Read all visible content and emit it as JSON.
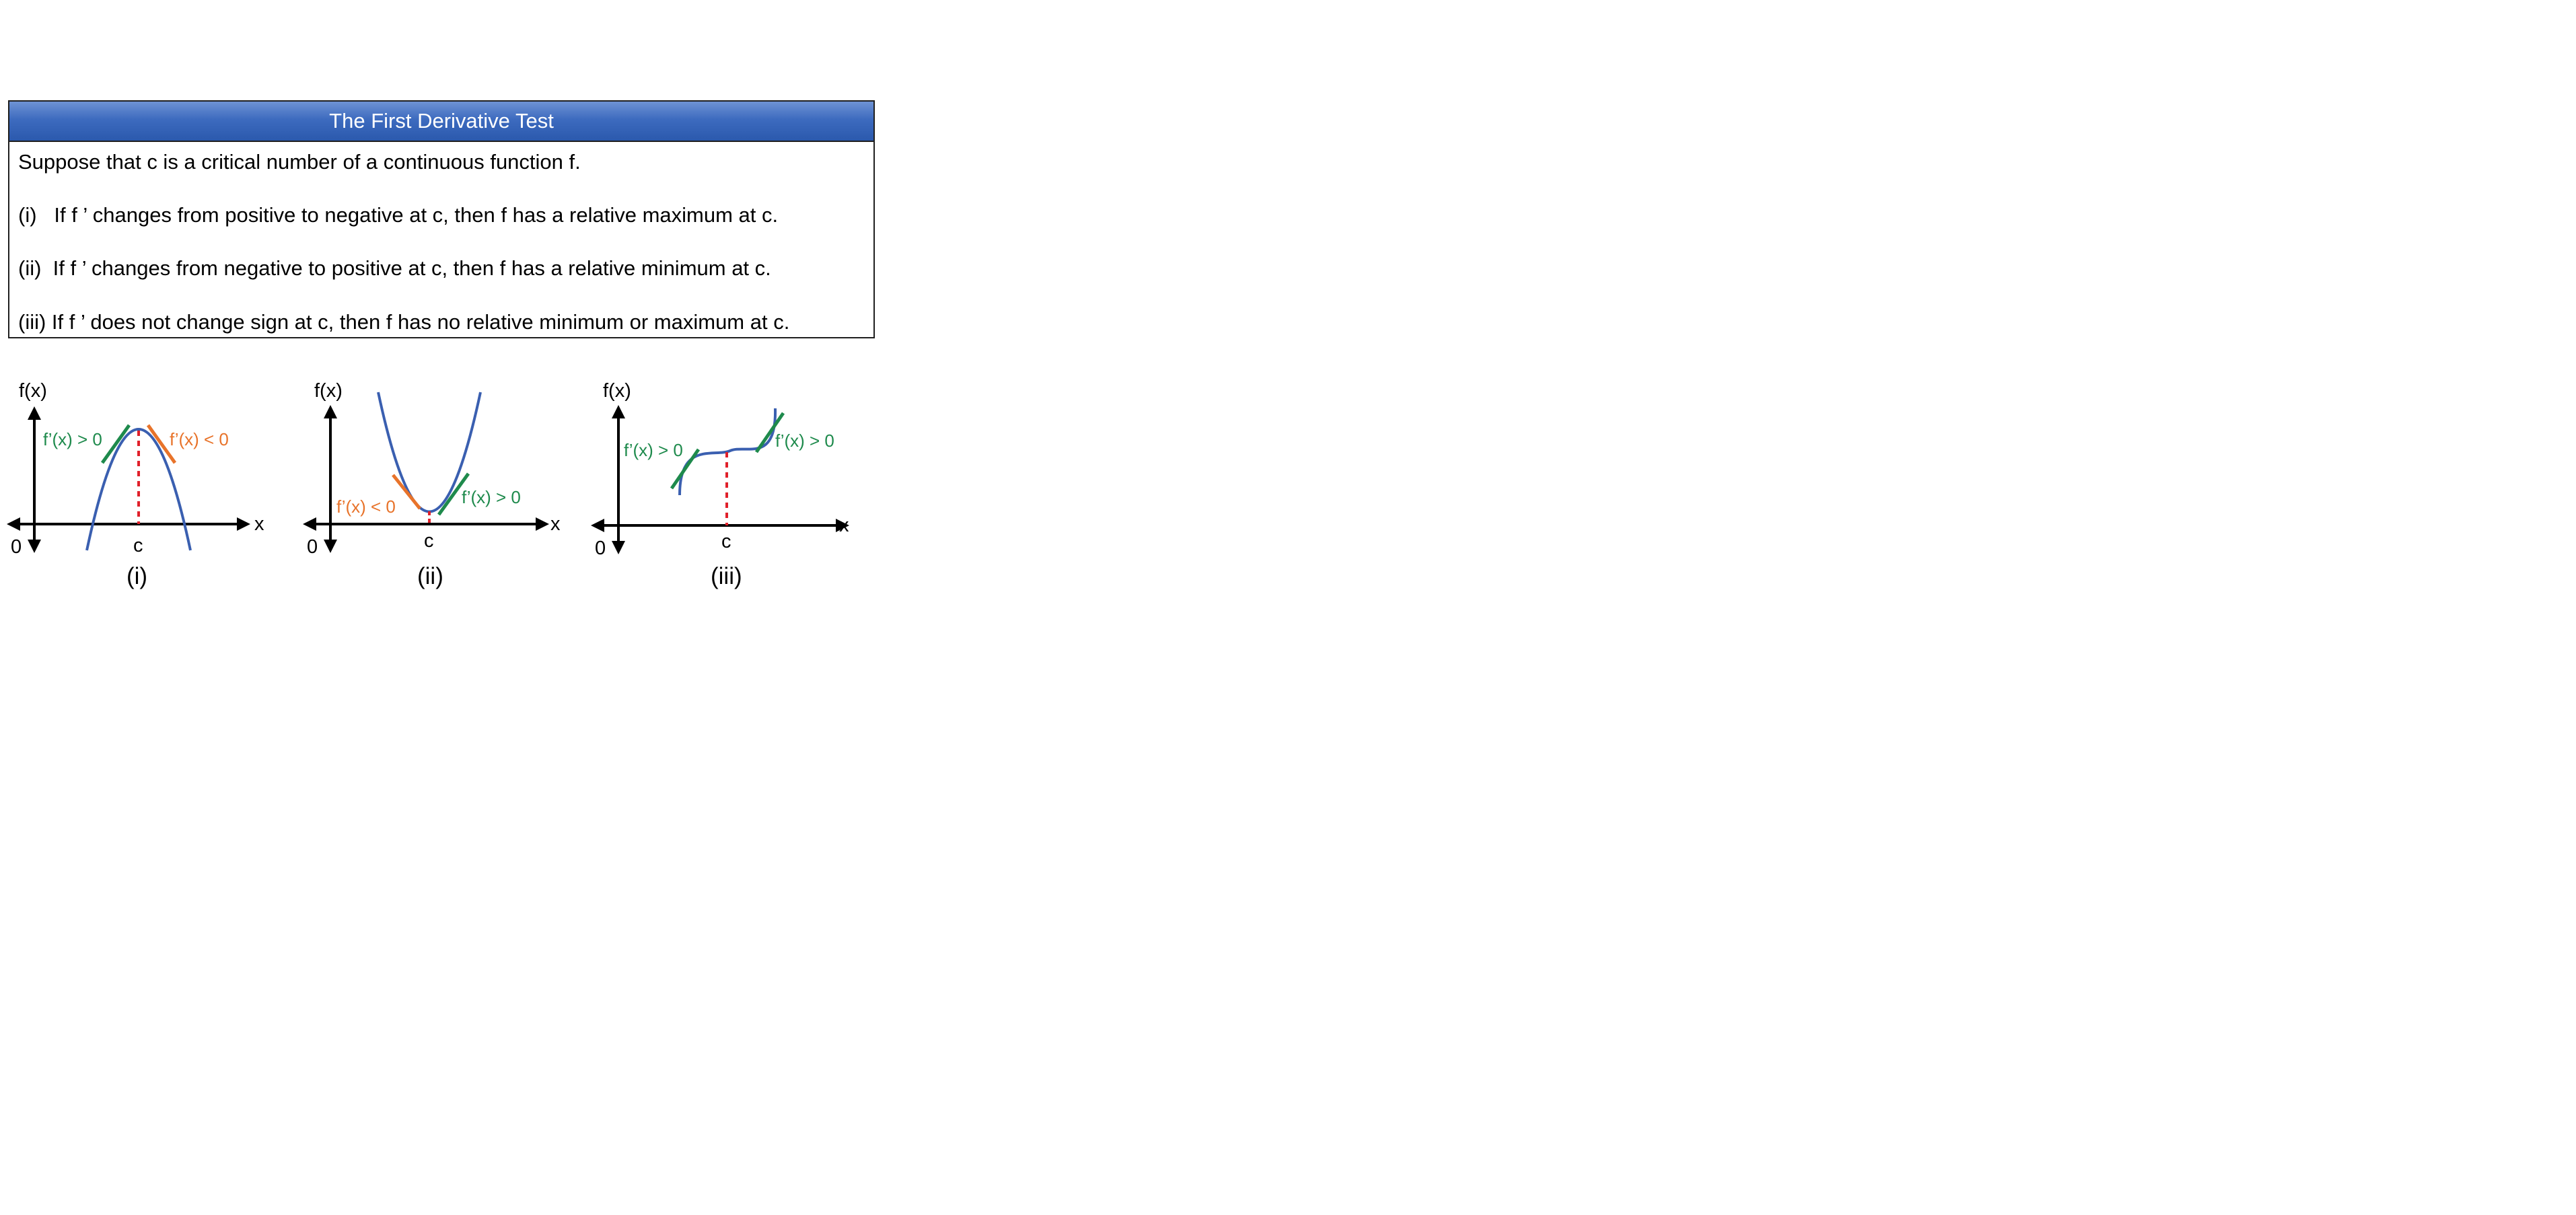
{
  "theorem": {
    "title": "The First Derivative Test",
    "intro": "Suppose that c is a critical number of a continuous function f.",
    "cases": [
      "(i)   If f ’ changes from positive to negative at c, then f has a relative maximum at c.",
      "(ii)  If f ’ changes from negative to positive at c, then f has a relative minimum at c.",
      "(iii) If f ’ does not change sign at c, then f has no relative minimum or maximum at c."
    ]
  },
  "graphs": [
    {
      "caption": "(i)",
      "y_axis_label": "f(x)",
      "x_axis_label": "x",
      "origin_label": "0",
      "critical_label": "c",
      "left_slope_label": "f’(x) > 0",
      "right_slope_label": "f’(x) < 0"
    },
    {
      "caption": "(ii)",
      "y_axis_label": "f(x)",
      "x_axis_label": "x",
      "origin_label": "0",
      "critical_label": "c",
      "left_slope_label": "f’(x) < 0",
      "right_slope_label": "f’(x) > 0"
    },
    {
      "caption": "(iii)",
      "y_axis_label": "f(x)",
      "x_axis_label": "x",
      "origin_label": "0",
      "critical_label": "c",
      "left_slope_label": "f’(x) > 0",
      "right_slope_label": "f’(x) > 0"
    }
  ],
  "colors": {
    "header_blue": "#3d6bbf",
    "curve_blue": "#3a5fb0",
    "positive_green": "#1e8a4c",
    "negative_orange": "#e8732a",
    "critical_red": "#e0202a"
  }
}
